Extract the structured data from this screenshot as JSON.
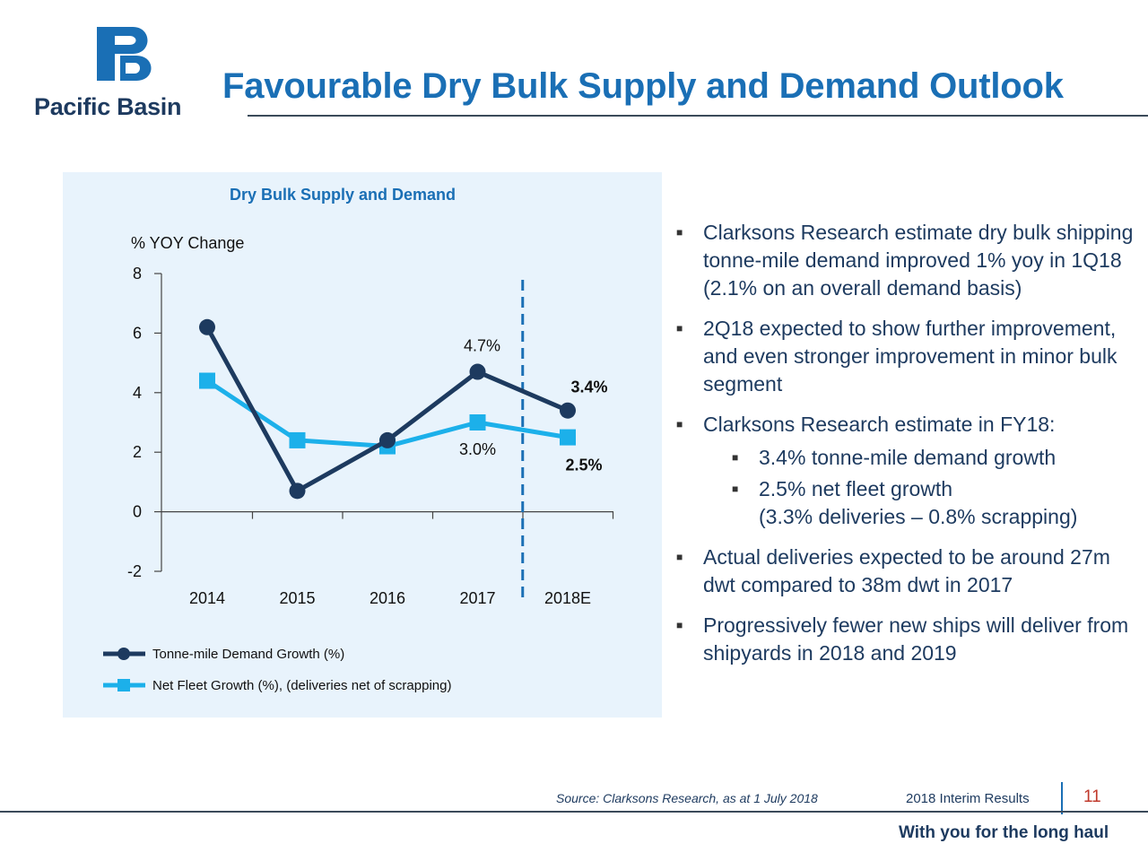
{
  "brand": {
    "name": "Pacific Basin"
  },
  "title": "Favourable Dry Bulk Supply and Demand Outlook",
  "chart_data": {
    "type": "line",
    "title": "Dry Bulk Supply and Demand",
    "ylabel": "% YOY Change",
    "xlabel": "",
    "categories": [
      "2014",
      "2015",
      "2016",
      "2017",
      "2018E"
    ],
    "ylim": [
      -2,
      8
    ],
    "yticks": [
      "8",
      "6",
      "4",
      "2",
      "0",
      "-2"
    ],
    "forecast_divider_between": [
      "2017",
      "2018E"
    ],
    "grid": false,
    "legend_position": "bottom-left",
    "series": [
      {
        "name": "Tonne-mile Demand Growth (%)",
        "marker": "circle",
        "color": "#1d3a5f",
        "values": [
          6.2,
          0.7,
          2.4,
          4.7,
          3.4
        ]
      },
      {
        "name": "Net Fleet Growth (%), (deliveries net of scrapping)",
        "marker": "square",
        "color": "#1cb0ea",
        "values": [
          4.4,
          2.4,
          2.2,
          3.0,
          2.5
        ]
      }
    ],
    "annotations": [
      {
        "text": "4.7%",
        "series": 0,
        "category": "2017",
        "bold": false
      },
      {
        "text": "3.4%",
        "series": 0,
        "category": "2018E",
        "bold": true
      },
      {
        "text": "3.0%",
        "series": 1,
        "category": "2017",
        "bold": false
      },
      {
        "text": "2.5%",
        "series": 1,
        "category": "2018E",
        "bold": true
      }
    ]
  },
  "bullets": [
    {
      "text": "Clarksons Research estimate dry bulk shipping tonne-mile demand improved 1% yoy in 1Q18 (2.1% on an overall demand basis)"
    },
    {
      "text": "2Q18 expected to show further improvement, and even stronger improvement in minor bulk segment"
    },
    {
      "text": "Clarksons Research estimate in FY18:",
      "sub": [
        "3.4% tonne-mile demand growth",
        "2.5% net fleet growth"
      ],
      "sub_cont": "(3.3% deliveries – 0.8% scrapping)"
    },
    {
      "text": "Actual deliveries expected to be around 27m dwt compared to 38m dwt in 2017"
    },
    {
      "text": "Progressively fewer new ships will deliver from shipyards in 2018 and 2019"
    }
  ],
  "footer": {
    "source": "Source: Clarksons Research, as at 1 July 2018",
    "label": "2018 Interim Results",
    "page": "11",
    "tagline": "With you for the long haul"
  },
  "colors": {
    "title": "#1a6fb5",
    "navy": "#1d3a5f",
    "cyan": "#1cb0ea",
    "panel": "#e8f3fc",
    "page_number": "#c0392b"
  }
}
